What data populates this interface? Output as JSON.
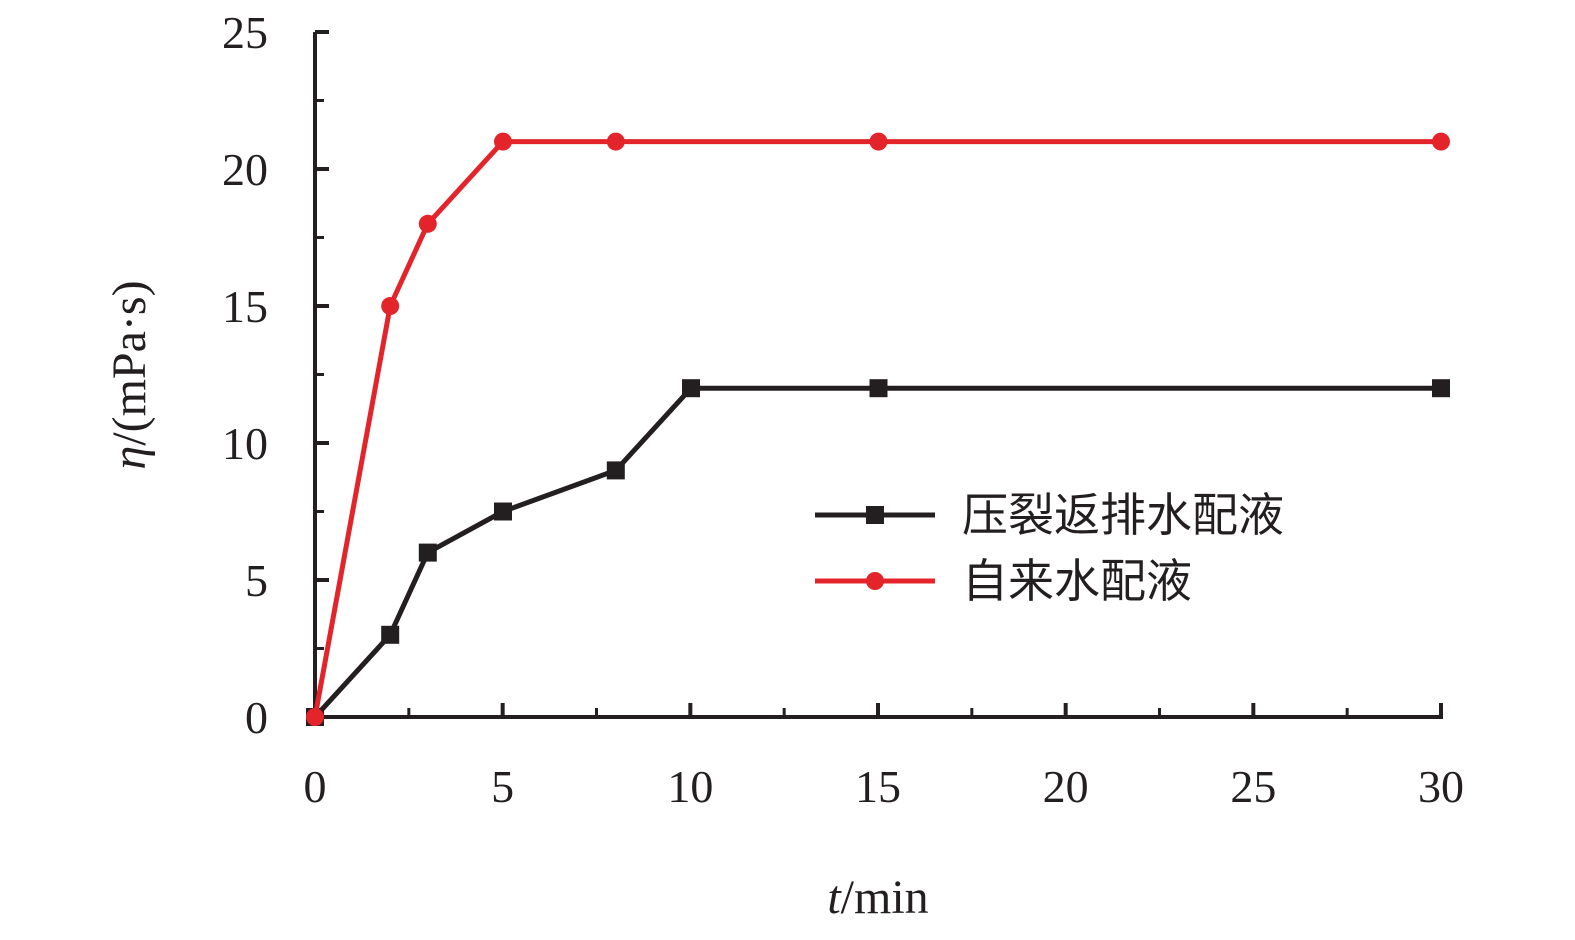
{
  "chart_data": {
    "type": "line",
    "title": "",
    "xlabel": {
      "var": "t",
      "unit": "/min"
    },
    "ylabel": {
      "var": "η",
      "unit": "/(mPa·s)"
    },
    "x_categories": [
      "0",
      "5",
      "10",
      "15",
      "20",
      "25",
      "30"
    ],
    "ylim": [
      0,
      25
    ],
    "yticks": [
      0,
      5,
      10,
      15,
      20,
      25
    ],
    "legend_placement": "center-right",
    "grid": false,
    "series": [
      {
        "name": "压裂返排水配液",
        "color": "#231f20",
        "marker": "square",
        "points": [
          {
            "x": 0,
            "y": 0
          },
          {
            "x": 2,
            "y": 3
          },
          {
            "x": 3,
            "y": 6
          },
          {
            "x": 5,
            "y": 7.5
          },
          {
            "x": 8,
            "y": 9
          },
          {
            "x": 10,
            "y": 12
          },
          {
            "x": 15,
            "y": 12
          },
          {
            "x": 30,
            "y": 12
          }
        ]
      },
      {
        "name": "自来水配液",
        "color": "#e3242b",
        "marker": "circle",
        "points": [
          {
            "x": 0,
            "y": 0
          },
          {
            "x": 2,
            "y": 15
          },
          {
            "x": 3,
            "y": 18
          },
          {
            "x": 5,
            "y": 21
          },
          {
            "x": 8,
            "y": 21
          },
          {
            "x": 15,
            "y": 21
          },
          {
            "x": 30,
            "y": 21
          }
        ]
      }
    ]
  }
}
